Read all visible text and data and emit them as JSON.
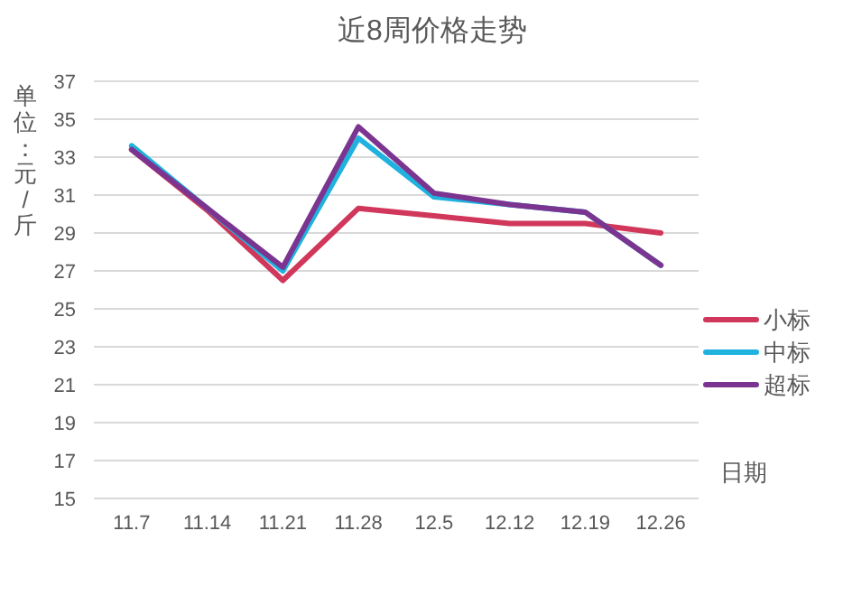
{
  "chart_data": {
    "type": "line",
    "title": "近8周价格走势",
    "ylabel": "单位：元/斤",
    "xlabel": "日期",
    "categories": [
      "11.7",
      "11.14",
      "11.21",
      "11.28",
      "12.5",
      "12.12",
      "12.19",
      "12.26"
    ],
    "series": [
      {
        "name": "小标",
        "color": "#d0375a",
        "values": [
          33.4,
          30.2,
          26.5,
          30.3,
          29.9,
          29.5,
          29.5,
          29.0
        ]
      },
      {
        "name": "中标",
        "color": "#1fb2de",
        "values": [
          33.6,
          30.3,
          27.0,
          34.0,
          30.9,
          30.5,
          30.1,
          27.3
        ]
      },
      {
        "name": "超标",
        "color": "#7b3590",
        "values": [
          33.4,
          30.3,
          27.2,
          34.6,
          31.1,
          30.5,
          30.1,
          27.3
        ]
      }
    ],
    "ylim": [
      15,
      37
    ],
    "yticks": [
      15,
      17,
      19,
      21,
      23,
      25,
      27,
      29,
      31,
      33,
      35,
      37
    ],
    "grid": "y",
    "legend": "right",
    "marker": "none",
    "line_style": "solid"
  }
}
